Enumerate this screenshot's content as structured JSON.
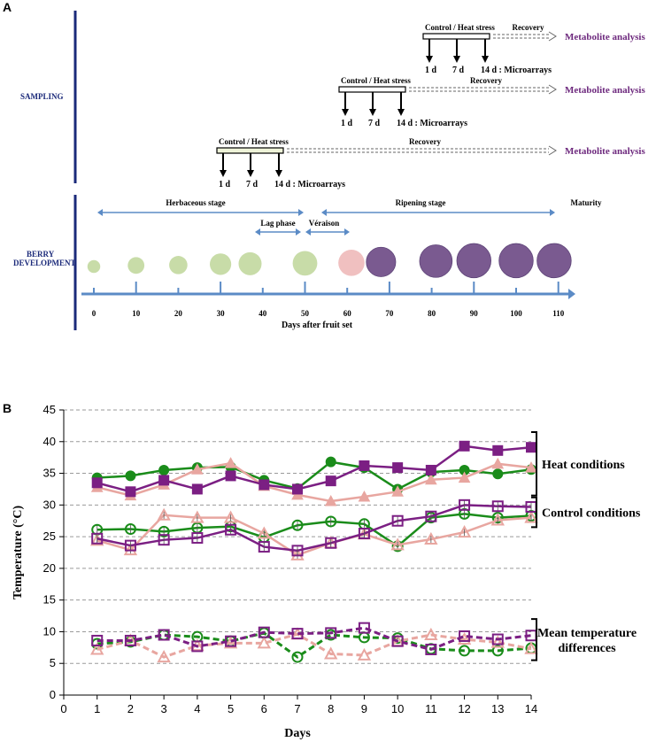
{
  "panel_a": {
    "letter": "A",
    "sampling_label": "SAMPLING",
    "berry_label_line1": "BERRY",
    "berry_label_line2": "DEVELOPMENT",
    "sampling_rows": [
      {
        "stress": "Control / Heat stress",
        "recovery": "Recovery",
        "metabolite": "Metabolite analysis",
        "d1": "1 d",
        "d7": "7 d",
        "d14": "14 d : Microarrays"
      },
      {
        "stress": "Control / Heat stress",
        "recovery": "Recovery",
        "metabolite": "Metabolite analysis",
        "d1": "1 d",
        "d7": "7 d",
        "d14": "14 d : Microarrays"
      },
      {
        "stress": "Control / Heat stress",
        "recovery": "Recovery",
        "metabolite": "Metabolite analysis",
        "d1": "1 d",
        "d7": "7 d",
        "d14": "14 d : Microarrays"
      }
    ],
    "stages": {
      "herbaceous": "Herbaceous stage",
      "lag": "Lag phase",
      "veraison": "Véraison",
      "ripening": "Ripening stage",
      "maturity": "Maturity"
    },
    "timeline_ticks": [
      "0",
      "10",
      "20",
      "30",
      "40",
      "50",
      "60",
      "70",
      "80",
      "90",
      "100",
      "110"
    ],
    "timeline_title": "Days after fruit set",
    "berries": [
      {
        "day": 0,
        "size": 0.18,
        "color": "#c8dca8"
      },
      {
        "day": 10,
        "size": 0.3,
        "color": "#c8dca8"
      },
      {
        "day": 20,
        "size": 0.35,
        "color": "#c8dca8"
      },
      {
        "day": 30,
        "size": 0.45,
        "color": "#c8dca8"
      },
      {
        "day": 37,
        "size": 0.5,
        "color": "#c8dca8"
      },
      {
        "day": 50,
        "size": 0.55,
        "color": "#c8dca8"
      },
      {
        "day": 61,
        "size": 0.6,
        "color": "#f0c0c0"
      },
      {
        "day": 68,
        "size": 0.7,
        "color": "#7a5a90"
      },
      {
        "day": 81,
        "size": 0.8,
        "color": "#7a5a90"
      },
      {
        "day": 90,
        "size": 0.85,
        "color": "#7a5a90"
      },
      {
        "day": 100,
        "size": 0.85,
        "color": "#7a5a90"
      },
      {
        "day": 109,
        "size": 0.85,
        "color": "#7a5a90"
      }
    ]
  },
  "chart_data": {
    "type": "line",
    "panel_letter": "B",
    "xlabel": "Days",
    "ylabel": "Temperature (°C)",
    "xlim": [
      0,
      14
    ],
    "ylim": [
      0,
      45
    ],
    "xticks": [
      0,
      1,
      2,
      3,
      4,
      5,
      6,
      7,
      8,
      9,
      10,
      11,
      12,
      13,
      14
    ],
    "yticks": [
      0,
      5,
      10,
      15,
      20,
      25,
      30,
      35,
      40,
      45
    ],
    "grid": "horizontal dashed",
    "x": [
      1,
      2,
      3,
      4,
      5,
      6,
      7,
      8,
      9,
      10,
      11,
      12,
      13,
      14
    ],
    "series": [
      {
        "name": "Heat green",
        "group": "heat",
        "color": "#1a8c1a",
        "marker": "circle",
        "filled": true,
        "dashed": false,
        "values": [
          34.3,
          34.6,
          35.5,
          35.9,
          36.0,
          33.9,
          32.6,
          36.8,
          35.9,
          32.5,
          35.2,
          35.5,
          34.9,
          35.6
        ]
      },
      {
        "name": "Heat pink",
        "group": "heat",
        "color": "#e8a6a0",
        "marker": "triangle",
        "filled": true,
        "dashed": false,
        "values": [
          32.8,
          31.5,
          33.2,
          35.6,
          36.6,
          33.0,
          31.6,
          30.6,
          31.3,
          32.1,
          34.0,
          34.3,
          36.5,
          35.9
        ]
      },
      {
        "name": "Heat purple",
        "group": "heat",
        "color": "#7b1f83",
        "marker": "square",
        "filled": true,
        "dashed": false,
        "values": [
          33.5,
          32.1,
          33.9,
          32.5,
          34.6,
          33.2,
          32.5,
          33.8,
          36.2,
          35.9,
          35.5,
          39.3,
          38.6,
          39.1
        ]
      },
      {
        "name": "Control green",
        "group": "control",
        "color": "#1a8c1a",
        "marker": "circle",
        "filled": false,
        "dashed": false,
        "values": [
          26.1,
          26.2,
          25.8,
          26.4,
          26.6,
          24.9,
          26.8,
          27.4,
          27.0,
          23.5,
          28.0,
          28.6,
          28.0,
          28.3
        ]
      },
      {
        "name": "Control pink",
        "group": "control",
        "color": "#e8a6a0",
        "marker": "triangle",
        "filled": false,
        "dashed": false,
        "values": [
          24.4,
          22.9,
          28.4,
          28.0,
          28.0,
          25.5,
          22.1,
          24.0,
          25.4,
          23.7,
          24.6,
          25.7,
          27.6,
          28.0
        ]
      },
      {
        "name": "Control purple",
        "group": "control",
        "color": "#7b1f83",
        "marker": "square",
        "filled": false,
        "dashed": false,
        "values": [
          24.7,
          23.6,
          24.5,
          24.8,
          26.1,
          23.4,
          22.8,
          24.0,
          25.5,
          27.5,
          28.2,
          30.0,
          29.8,
          29.7
        ]
      },
      {
        "name": "Diff green",
        "group": "difference",
        "color": "#1a8c1a",
        "marker": "circle",
        "filled": false,
        "dashed": true,
        "values": [
          8.1,
          8.4,
          9.5,
          9.2,
          8.5,
          9.8,
          6.0,
          9.5,
          9.1,
          9.0,
          7.3,
          7.0,
          7.0,
          7.4
        ]
      },
      {
        "name": "Diff pink",
        "group": "difference",
        "color": "#e8a6a0",
        "marker": "triangle",
        "filled": false,
        "dashed": true,
        "values": [
          7.2,
          8.6,
          6.0,
          7.8,
          8.2,
          8.2,
          9.6,
          6.5,
          6.3,
          8.5,
          9.5,
          8.8,
          8.3,
          7.3
        ]
      },
      {
        "name": "Diff purple",
        "group": "difference",
        "color": "#7b1f83",
        "marker": "square",
        "filled": false,
        "dashed": true,
        "values": [
          8.6,
          8.6,
          9.5,
          7.7,
          8.5,
          9.9,
          9.7,
          9.8,
          10.6,
          8.5,
          7.2,
          9.3,
          8.8,
          9.4
        ]
      }
    ],
    "brackets": [
      {
        "label_lines": [
          "Heat conditions"
        ],
        "range": [
          31.5,
          41.5
        ]
      },
      {
        "label_lines": [
          "Control conditions"
        ],
        "range": [
          26.5,
          31.2
        ]
      },
      {
        "label_lines": [
          "Mean temperature",
          "differences"
        ],
        "range": [
          5.5,
          12
        ]
      }
    ]
  }
}
